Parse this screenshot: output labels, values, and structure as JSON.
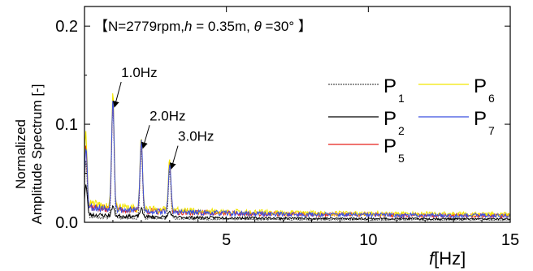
{
  "chart_data": {
    "type": "line",
    "title": "【N=2779rpm, h = 0.35m,  θ =30°  】",
    "title_parts": {
      "prefix": "【N=2779rpm,",
      "h_symbol": "h",
      "h_value": " = 0.35m,  ",
      "theta_symbol": "θ",
      "theta_value": " =30°",
      "suffix": "  】"
    },
    "xlabel": {
      "symbol": "f",
      "unit": "[Hz]"
    },
    "ylabel": {
      "line1": "Normalized",
      "line2": "Amplitude Spectrum [-]"
    },
    "xlim": [
      0,
      15
    ],
    "ylim": [
      0,
      0.22
    ],
    "xticks": [
      5,
      10,
      15
    ],
    "yticks": [
      0.0,
      0.1,
      0.2
    ],
    "xtick_labels": [
      "5",
      "10",
      "15"
    ],
    "ytick_labels": [
      "0.0",
      "0.1",
      "0.2"
    ],
    "grid": false,
    "legend_position": "right",
    "series": [
      {
        "name": "P",
        "sub": "1",
        "color": "#555555",
        "dashed": true,
        "baseline": 0.002,
        "noise": 0.002,
        "seed": 11,
        "peaks": [
          [
            0.05,
            0.058
          ],
          [
            1.0,
            0.115
          ],
          [
            2.0,
            0.072
          ],
          [
            3.0,
            0.05
          ]
        ]
      },
      {
        "name": "P",
        "sub": "2",
        "color": "#000000",
        "dashed": false,
        "baseline": 0.003,
        "noise": 0.003,
        "seed": 23,
        "peaks": [
          [
            0.05,
            0.03
          ],
          [
            1.0,
            0.01
          ],
          [
            2.0,
            0.008
          ],
          [
            3.0,
            0.006
          ]
        ]
      },
      {
        "name": "P",
        "sub": "5",
        "color": "#e8211b",
        "dashed": false,
        "baseline": 0.006,
        "noise": 0.006,
        "seed": 37,
        "peaks": [
          [
            0.05,
            0.065
          ],
          [
            1.0,
            0.113
          ],
          [
            2.0,
            0.071
          ],
          [
            3.0,
            0.051
          ]
        ]
      },
      {
        "name": "P",
        "sub": "6",
        "color": "#f2e600",
        "dashed": false,
        "baseline": 0.007,
        "noise": 0.007,
        "seed": 41,
        "peaks": [
          [
            0.05,
            0.07
          ],
          [
            1.0,
            0.117
          ],
          [
            2.0,
            0.074
          ],
          [
            3.0,
            0.053
          ]
        ]
      },
      {
        "name": "P",
        "sub": "7",
        "color": "#3a4fe0",
        "dashed": false,
        "baseline": 0.006,
        "noise": 0.006,
        "seed": 53,
        "peaks": [
          [
            0.05,
            0.062
          ],
          [
            1.0,
            0.114
          ],
          [
            2.0,
            0.072
          ],
          [
            3.0,
            0.05
          ]
        ]
      }
    ],
    "annotations": [
      {
        "text": "1.0Hz",
        "x": 1.0,
        "y": 0.116,
        "label_x": 1.35,
        "label_y": 0.148
      },
      {
        "text": "2.0Hz",
        "x": 2.0,
        "y": 0.074,
        "label_x": 2.35,
        "label_y": 0.104
      },
      {
        "text": "3.0Hz",
        "x": 3.0,
        "y": 0.053,
        "label_x": 3.35,
        "label_y": 0.083
      }
    ]
  }
}
